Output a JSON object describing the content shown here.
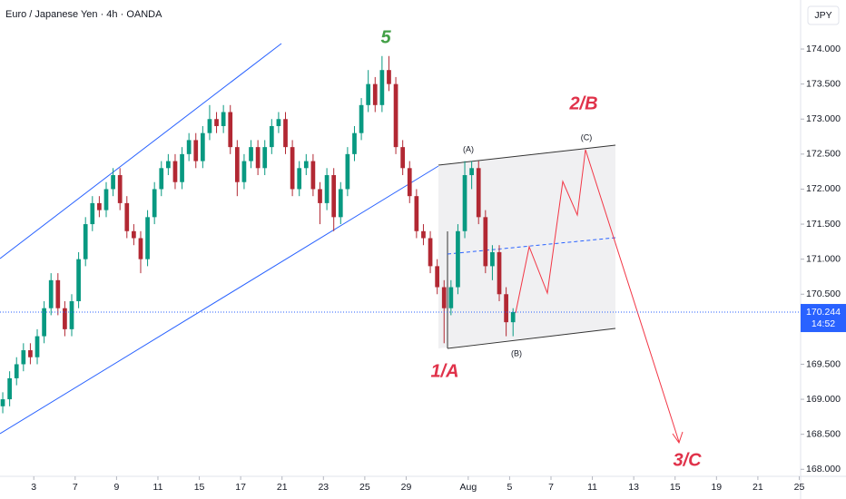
{
  "chart_data": {
    "type": "candlestick",
    "title": "Euro / Japanese Yen · 4h · OANDA",
    "currency": "JPY",
    "up_color": "#089981",
    "down_color": "#b22833",
    "grid": false,
    "x": [
      0,
      1,
      2,
      3,
      4,
      5,
      6,
      7,
      8,
      9,
      10,
      11,
      12,
      13,
      14,
      15,
      16,
      17,
      18,
      19,
      20,
      21,
      22,
      23,
      24,
      25,
      26,
      27,
      28,
      29,
      30,
      31,
      32,
      33,
      34,
      35,
      36,
      37,
      38,
      39,
      40,
      41,
      42,
      43,
      44,
      45,
      46,
      47,
      48,
      49,
      50,
      51,
      52,
      53,
      54,
      55,
      56,
      57,
      58,
      59,
      60,
      61,
      62,
      63,
      64,
      65,
      66,
      67,
      68,
      69,
      70,
      71,
      72,
      73,
      74
    ],
    "open": [
      168.9,
      169.0,
      169.3,
      169.5,
      169.7,
      169.6,
      169.9,
      170.3,
      170.7,
      170.3,
      170.0,
      170.4,
      171.0,
      171.5,
      171.8,
      171.7,
      172.0,
      172.2,
      171.8,
      171.4,
      171.3,
      171.0,
      171.6,
      172.0,
      172.3,
      172.4,
      172.1,
      172.5,
      172.7,
      172.4,
      172.8,
      173.0,
      172.9,
      173.1,
      172.6,
      172.1,
      172.4,
      172.6,
      172.3,
      172.6,
      172.9,
      173.0,
      172.6,
      172.0,
      172.3,
      172.4,
      172.0,
      171.8,
      172.2,
      171.6,
      172.0,
      172.5,
      172.8,
      173.2,
      173.5,
      173.2,
      173.7,
      173.5,
      172.6,
      172.3,
      171.9,
      171.4,
      171.3,
      170.9,
      170.6,
      170.3,
      170.6,
      171.4,
      172.2,
      172.3,
      171.6,
      170.9,
      171.1,
      170.5,
      170.1
    ],
    "high": [
      169.1,
      169.4,
      169.6,
      169.8,
      169.8,
      170.0,
      170.4,
      170.8,
      170.8,
      170.4,
      170.5,
      171.1,
      171.6,
      171.9,
      171.9,
      172.1,
      172.3,
      172.3,
      171.9,
      171.5,
      171.4,
      171.7,
      172.1,
      172.4,
      172.5,
      172.5,
      172.6,
      172.8,
      172.8,
      172.9,
      173.2,
      173.1,
      173.2,
      173.2,
      172.7,
      172.5,
      172.7,
      172.7,
      172.7,
      173.0,
      173.1,
      173.1,
      172.7,
      172.4,
      172.5,
      172.5,
      172.1,
      172.3,
      172.3,
      172.1,
      172.6,
      172.9,
      173.3,
      173.7,
      173.6,
      173.9,
      173.9,
      173.6,
      172.7,
      172.4,
      172.0,
      171.5,
      171.4,
      171.0,
      170.7,
      170.7,
      171.5,
      172.4,
      172.4,
      172.4,
      171.7,
      171.2,
      171.2,
      170.6,
      170.3
    ],
    "low": [
      168.8,
      168.9,
      169.2,
      169.4,
      169.5,
      169.5,
      169.8,
      170.2,
      170.2,
      169.9,
      169.9,
      170.3,
      170.9,
      171.4,
      171.6,
      171.6,
      171.9,
      171.7,
      171.3,
      171.2,
      170.8,
      170.9,
      171.5,
      171.9,
      172.2,
      172.0,
      172.0,
      172.4,
      172.3,
      172.3,
      172.7,
      172.8,
      172.8,
      172.5,
      171.9,
      172.0,
      172.3,
      172.2,
      172.2,
      172.5,
      172.8,
      172.5,
      171.9,
      171.9,
      172.2,
      171.9,
      171.5,
      171.7,
      171.4,
      171.5,
      171.9,
      172.4,
      172.7,
      173.1,
      173.1,
      173.1,
      173.4,
      172.5,
      172.2,
      171.8,
      171.3,
      171.2,
      170.8,
      170.5,
      169.8,
      170.2,
      170.5,
      171.3,
      172.0,
      171.5,
      170.8,
      170.7,
      170.4,
      169.9,
      169.9
    ],
    "close": [
      169.0,
      169.3,
      169.5,
      169.7,
      169.6,
      169.9,
      170.3,
      170.7,
      170.3,
      170.0,
      170.4,
      171.0,
      171.5,
      171.8,
      171.7,
      172.0,
      172.2,
      171.8,
      171.4,
      171.3,
      171.0,
      171.6,
      172.0,
      172.3,
      172.4,
      172.1,
      172.5,
      172.7,
      172.4,
      172.8,
      173.0,
      172.9,
      173.1,
      172.6,
      172.1,
      172.4,
      172.6,
      172.3,
      172.6,
      172.9,
      173.0,
      172.6,
      172.0,
      172.3,
      172.4,
      172.0,
      171.8,
      172.2,
      171.6,
      172.0,
      172.5,
      172.8,
      173.2,
      173.5,
      173.2,
      173.7,
      173.5,
      172.6,
      172.3,
      171.9,
      171.4,
      171.3,
      170.9,
      170.6,
      170.3,
      170.6,
      171.4,
      172.2,
      172.3,
      171.6,
      170.9,
      171.1,
      170.5,
      170.1,
      170.244
    ],
    "last_price": 170.244,
    "countdown": "14:52",
    "xlim": [
      -0.4,
      115.7
    ],
    "xticks": [
      {
        "value": 4.5,
        "label": "3"
      },
      {
        "value": 10.5,
        "label": "7"
      },
      {
        "value": 16.5,
        "label": "9"
      },
      {
        "value": 22.5,
        "label": "11"
      },
      {
        "value": 28.5,
        "label": "15"
      },
      {
        "value": 34.5,
        "label": "17"
      },
      {
        "value": 40.5,
        "label": "21"
      },
      {
        "value": 46.5,
        "label": "23"
      },
      {
        "value": 52.5,
        "label": "25"
      },
      {
        "value": 58.5,
        "label": "29"
      },
      {
        "value": 67.5,
        "label": "Aug"
      },
      {
        "value": 73.5,
        "label": "5"
      },
      {
        "value": 79.5,
        "label": "7"
      },
      {
        "value": 85.5,
        "label": "11"
      },
      {
        "value": 91.5,
        "label": "13"
      },
      {
        "value": 97.5,
        "label": "15"
      },
      {
        "value": 103.5,
        "label": "19"
      },
      {
        "value": 109.5,
        "label": "21"
      },
      {
        "value": 115.5,
        "label": "25"
      }
    ],
    "ylim": [
      167.9,
      174.7
    ],
    "yticks": [
      {
        "value": 168,
        "label": "168.000"
      },
      {
        "value": 168.5,
        "label": "168.500"
      },
      {
        "value": 169,
        "label": "169.000"
      },
      {
        "value": 169.5,
        "label": "169.500"
      },
      {
        "value": 170,
        "label": "170.000"
      },
      {
        "value": 170.5,
        "label": "170.500"
      },
      {
        "value": 171,
        "label": "171.000"
      },
      {
        "value": 171.5,
        "label": "171.500"
      },
      {
        "value": 172,
        "label": "172.000"
      },
      {
        "value": 172.5,
        "label": "172.500"
      },
      {
        "value": 173,
        "label": "173.000"
      },
      {
        "value": 173.5,
        "label": "173.500"
      },
      {
        "value": 174,
        "label": "174.000"
      }
    ],
    "annotations": {
      "wave5": "5",
      "wave2b": "2/B",
      "wave1a": "1/A",
      "wave3c": "3/C",
      "subA": "(A)",
      "subB": "(B)",
      "subC": "(C)"
    }
  }
}
